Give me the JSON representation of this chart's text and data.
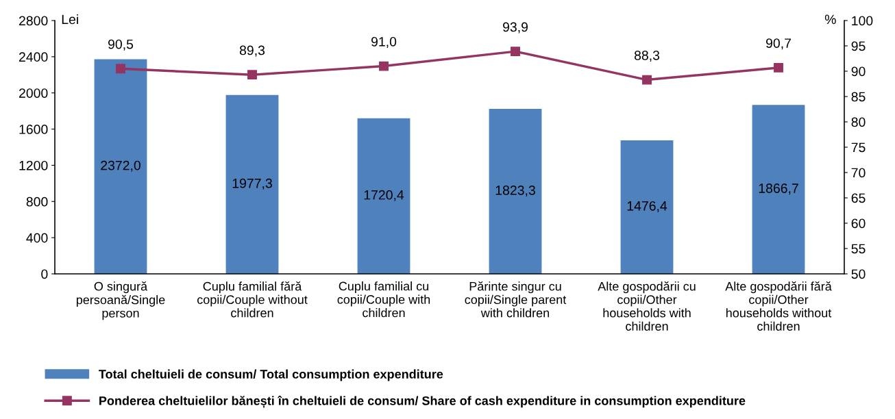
{
  "chart_data": {
    "type": "bar",
    "categories": [
      "O singură\npersoană/Single\nperson",
      "Cuplu familial fără\ncopii/Couple without\nchildren",
      "Cuplu familial cu\ncopii/Couple with\nchildren",
      "Părinte singur cu\ncopii/Single parent\nwith children",
      "Alte gospodării cu\ncopii/Other\nhouseholds with\nchildren",
      "Alte gospodării fără\ncopii/Other\nhouseholds without\nchildren"
    ],
    "series": [
      {
        "name": "Total cheltuieli de consum/ Total consumption expenditure",
        "color": "#4f81bd",
        "values": [
          2372.0,
          1977.3,
          1720.4,
          1823.3,
          1476.4,
          1866.7
        ],
        "value_labels": [
          "2372,0",
          "1977,3",
          "1720,4",
          "1823,3",
          "1476,4",
          "1866,7"
        ]
      },
      {
        "name": "Ponderea cheltuielilor bănești în cheltuieli de consum/ Share of cash expenditure in consumption expenditure",
        "type": "line",
        "axis": "y2",
        "color": "#953461",
        "marker": "square",
        "values": [
          90.5,
          89.3,
          91.0,
          93.9,
          88.3,
          90.7
        ],
        "value_labels": [
          "90,5",
          "89,3",
          "91,0",
          "93,9",
          "88,3",
          "90,7"
        ]
      }
    ],
    "ylabel": "Lei",
    "y2label": "%",
    "ylim": [
      0,
      2800
    ],
    "yticks": [
      0,
      400,
      800,
      1200,
      1600,
      2000,
      2400,
      2800
    ],
    "y2lim": [
      50,
      100
    ],
    "y2ticks": [
      50,
      55,
      60,
      65,
      70,
      75,
      80,
      85,
      90,
      95,
      100
    ],
    "grid": false,
    "legend": "bottom"
  }
}
